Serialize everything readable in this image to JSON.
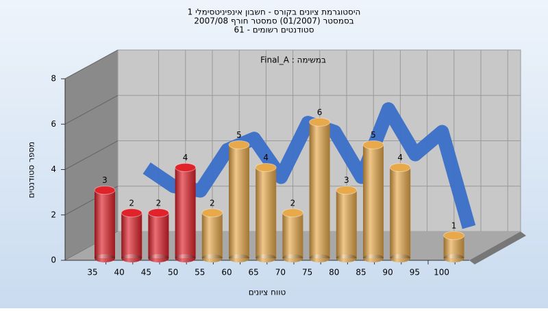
{
  "chart_data": {
    "type": "bar",
    "title": [
      "היסטוגרמת ציונים בקורס - חשבון אינפיניטסימלי 1",
      "בסמסטר  (01/2007)  סמסטר חורף 2007/08",
      "סטודנטים רשומים - 61"
    ],
    "subtitle": "במשימה : Final_A",
    "xlabel": "טווח ציונים",
    "ylabel": "מספר סטודנטים",
    "categories": [
      "35",
      "40",
      "45",
      "50",
      "55",
      "60",
      "65",
      "70",
      "75",
      "80",
      "85",
      "90",
      "95",
      "100"
    ],
    "values": [
      3,
      2,
      2,
      4,
      2,
      5,
      4,
      2,
      6,
      3,
      5,
      4,
      null,
      1
    ],
    "colors": [
      "#e0222a",
      "#e0222a",
      "#e0222a",
      "#e0222a",
      "#e8a94a",
      "#e8a94a",
      "#e8a94a",
      "#e8a94a",
      "#e8a94a",
      "#e8a94a",
      "#e8a94a",
      "#e8a94a",
      "#e8a94a",
      "#e8a94a"
    ],
    "line": {
      "color": "#3a6fc8",
      "values": [
        null,
        3.4,
        2.6,
        2.4,
        4.2,
        4.7,
        3.0,
        5.4,
        5.0,
        3.0,
        6.0,
        4.0,
        5.0,
        0.8
      ]
    },
    "ylim": [
      0,
      8
    ],
    "yticks": [
      0,
      2,
      4,
      6,
      8
    ],
    "grid": true
  }
}
